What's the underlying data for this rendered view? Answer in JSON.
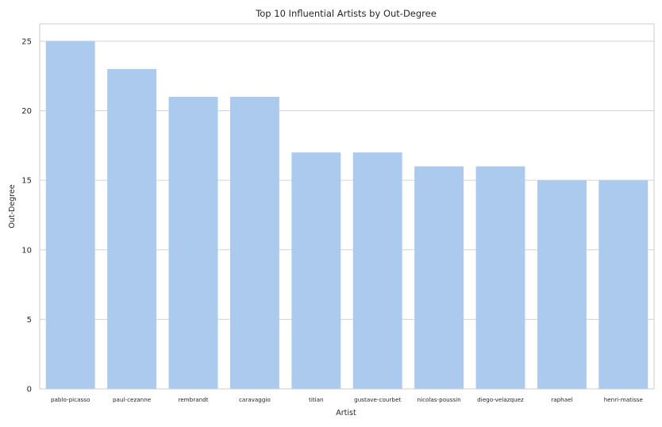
{
  "chart_data": {
    "type": "bar",
    "title": "Top 10 Influential Artists by Out-Degree",
    "xlabel": "Artist",
    "ylabel": "Out-Degree",
    "categories": [
      "pablo-picasso",
      "paul-cezanne",
      "rembrandt",
      "caravaggio",
      "titian",
      "gustave-courbet",
      "nicolas-poussin",
      "diego-velazquez",
      "raphael",
      "henri-matisse"
    ],
    "values": [
      25,
      23,
      21,
      21,
      17,
      17,
      16,
      16,
      15,
      15
    ],
    "ylim": [
      0,
      26.25
    ],
    "yticks": [
      0,
      5,
      10,
      15,
      20,
      25
    ],
    "grid": "horizontal",
    "legend": "none",
    "colors": {
      "bar": "#abcaee",
      "grid": "#d3d3d3",
      "frame": "#cccccc",
      "text": "#262626"
    }
  }
}
